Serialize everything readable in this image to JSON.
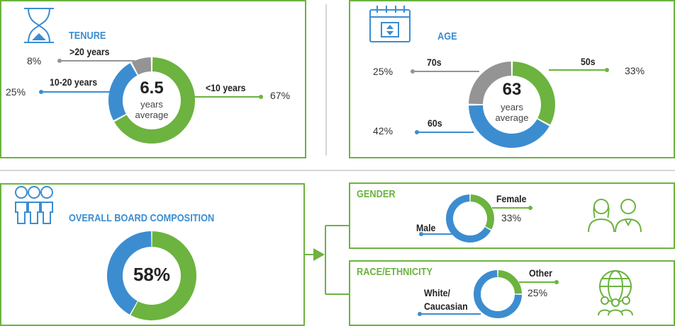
{
  "colors": {
    "green": "#6cb33f",
    "blue": "#3c8dd0",
    "gray": "#949494",
    "line": "#d0d0d0"
  },
  "tenure": {
    "title": "TENURE",
    "center_value": "6.5",
    "center_text_1": "years",
    "center_text_2": "average",
    "icon": "hourglass-icon"
  },
  "age": {
    "title": "AGE",
    "center_value": "63",
    "center_text_1": "years",
    "center_text_2": "average",
    "icon": "calendar-icon"
  },
  "overall": {
    "title": "OVERALL BOARD COMPOSITION",
    "center_value": "58%",
    "icon": "people-group-icon"
  },
  "gender": {
    "title": "GENDER",
    "icon": "man-woman-icon"
  },
  "race": {
    "title": "RACE/ETHNICITY",
    "icon": "globe-people-icon"
  },
  "chart_data": [
    {
      "type": "pie",
      "title": "TENURE",
      "categories": [
        ">20 years",
        "10-20 years",
        "<10 years"
      ],
      "values": [
        8,
        25,
        67
      ],
      "labels": [
        "8%",
        "25%",
        "67%"
      ],
      "colors": [
        "#949494",
        "#3c8dd0",
        "#6cb33f"
      ]
    },
    {
      "type": "pie",
      "title": "AGE",
      "categories": [
        "70s",
        "60s",
        "50s"
      ],
      "values": [
        25,
        42,
        33
      ],
      "labels": [
        "25%",
        "42%",
        "33%"
      ],
      "colors": [
        "#949494",
        "#3c8dd0",
        "#6cb33f"
      ]
    },
    {
      "type": "pie",
      "title": "OVERALL BOARD COMPOSITION",
      "categories": [
        "",
        ""
      ],
      "values": [
        58,
        42
      ],
      "labels": [
        "58%"
      ],
      "colors": [
        "#6cb33f",
        "#3c8dd0"
      ]
    },
    {
      "type": "pie",
      "title": "GENDER",
      "categories": [
        "Female",
        "Male"
      ],
      "values": [
        33,
        67
      ],
      "labels": [
        "33%"
      ],
      "colors": [
        "#6cb33f",
        "#3c8dd0"
      ]
    },
    {
      "type": "pie",
      "title": "RACE/ETHNICITY",
      "categories": [
        "Other",
        "White/ Caucasian"
      ],
      "values": [
        25,
        75
      ],
      "labels": [
        "25%"
      ],
      "colors": [
        "#6cb33f",
        "#3c8dd0"
      ]
    }
  ]
}
